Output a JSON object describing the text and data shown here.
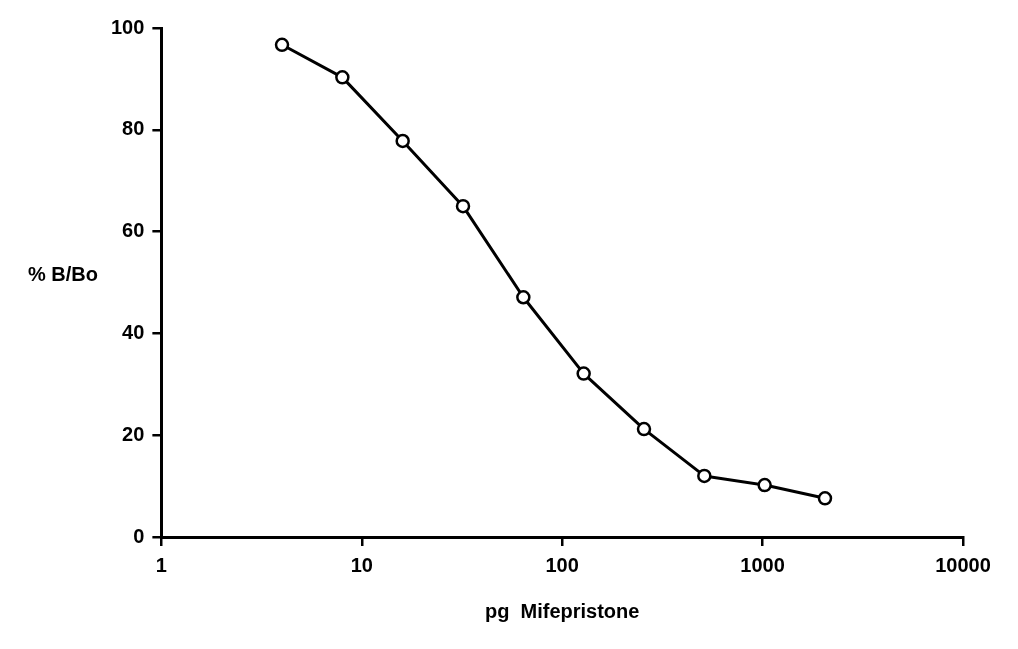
{
  "chart_data": {
    "type": "line",
    "xlabel": "pg  Mifepristone",
    "ylabel": "% B/Bo",
    "log": "x",
    "x": [
      4,
      8,
      16,
      32,
      64,
      128,
      256,
      512,
      1024,
      2048
    ],
    "series": [
      {
        "color": "#000000",
        "values": [
          96.7,
          90.3,
          77.8,
          65,
          47.1,
          32.1,
          21.2,
          12,
          10.2,
          7.6
        ]
      }
    ],
    "xlim": [
      1,
      10000
    ],
    "xticks": [
      1,
      10,
      100,
      1000,
      10000
    ],
    "ylim": [
      0,
      100
    ],
    "yticks": [
      0,
      20,
      40,
      60,
      80,
      100
    ],
    "grid": false,
    "legend": false,
    "marker": "circle",
    "line_style": "solid"
  }
}
